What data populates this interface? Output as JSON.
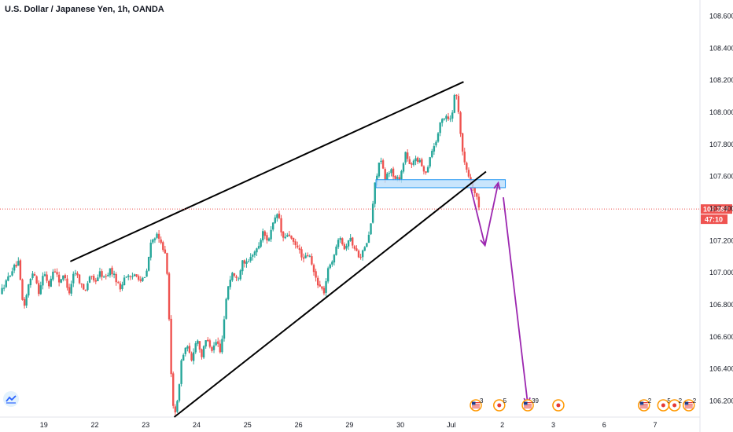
{
  "header": {
    "title": "U.S. Dollar / Japanese Yen, 1h, OANDA"
  },
  "colors": {
    "up": "#26a69a",
    "down": "#ef5350",
    "drawing": "#000000",
    "arrows": "#9c27b0",
    "zone_fill": "#bbdefb",
    "zone_border": "#2196f3",
    "price_line": "#ef5350"
  },
  "chart_data": {
    "type": "candlestick",
    "symbol": "USDJPY",
    "interval": "1h",
    "ylim": [
      106.1,
      108.7
    ],
    "y_ticks": [
      "108.600",
      "108.400",
      "108.200",
      "108.000",
      "107.800",
      "107.600",
      "107.400",
      "107.200",
      "107.000",
      "106.800",
      "106.600",
      "106.400",
      "106.200"
    ],
    "x_ticks": [
      {
        "label": "19",
        "x": 3
      },
      {
        "label": "22",
        "x": 8
      },
      {
        "label": "23",
        "x": 13
      },
      {
        "label": "24",
        "x": 18
      },
      {
        "label": "25",
        "x": 23
      },
      {
        "label": "26",
        "x": 28
      },
      {
        "label": "29",
        "x": 33
      },
      {
        "label": "30",
        "x": 38
      },
      {
        "label": "Jul",
        "x": 43
      },
      {
        "label": "2",
        "x": 48
      },
      {
        "label": "3",
        "x": 53
      },
      {
        "label": "6",
        "x": 58
      },
      {
        "label": "7",
        "x": 63
      }
    ],
    "x_range": [
      -1.3,
      67.4
    ],
    "last_price": {
      "value": 107.397,
      "label": "107.397",
      "countdown": "47:10"
    },
    "trendlines": [
      {
        "name": "upper-wedge-line",
        "points": [
          [
            5.6,
            107.07
          ],
          [
            44.2,
            108.19
          ]
        ]
      },
      {
        "name": "lower-wedge-line",
        "points": [
          [
            15.8,
            106.1
          ],
          [
            46.4,
            107.63
          ]
        ]
      }
    ],
    "zone": {
      "x": [
        35.6,
        48.3
      ],
      "y": [
        107.53,
        107.58
      ]
    },
    "forecast_paths": [
      {
        "points": [
          [
            44.9,
            107.53
          ],
          [
            46.3,
            107.17
          ],
          [
            47.6,
            107.56
          ]
        ]
      },
      {
        "points": [
          [
            48.1,
            107.47
          ],
          [
            50.5,
            106.18
          ]
        ]
      }
    ],
    "price_points": [
      [
        -1.3,
        106.87
      ],
      [
        0,
        107.03
      ],
      [
        0.5,
        107.06
      ],
      [
        1,
        106.77
      ],
      [
        1.5,
        106.92
      ],
      [
        2,
        107.02
      ],
      [
        2.5,
        106.88
      ],
      [
        3,
        107.0
      ],
      [
        3.5,
        106.92
      ],
      [
        4,
        107.03
      ],
      [
        4.5,
        106.95
      ],
      [
        5,
        106.98
      ],
      [
        5.5,
        106.88
      ],
      [
        6,
        107.02
      ],
      [
        6.5,
        106.95
      ],
      [
        7,
        106.88
      ],
      [
        7.5,
        106.98
      ],
      [
        8,
        106.94
      ],
      [
        8.5,
        107.0
      ],
      [
        9,
        106.96
      ],
      [
        9.5,
        107.02
      ],
      [
        10,
        106.97
      ],
      [
        10.5,
        106.9
      ],
      [
        11,
        106.99
      ],
      [
        11.5,
        106.96
      ],
      [
        12,
        107.0
      ],
      [
        12.5,
        106.95
      ],
      [
        13,
        106.97
      ],
      [
        13.5,
        107.18
      ],
      [
        14,
        107.24
      ],
      [
        14.5,
        107.18
      ],
      [
        15,
        107.12
      ],
      [
        15.3,
        106.7
      ],
      [
        15.6,
        106.2
      ],
      [
        16,
        106.12
      ],
      [
        16.5,
        106.45
      ],
      [
        17,
        106.55
      ],
      [
        17.5,
        106.45
      ],
      [
        18,
        106.6
      ],
      [
        18.5,
        106.48
      ],
      [
        19,
        106.6
      ],
      [
        19.5,
        106.52
      ],
      [
        20,
        106.58
      ],
      [
        20.3,
        106.5
      ],
      [
        20.6,
        106.65
      ],
      [
        21,
        106.9
      ],
      [
        21.5,
        107.0
      ],
      [
        22,
        106.95
      ],
      [
        22.5,
        107.08
      ],
      [
        23,
        107.05
      ],
      [
        23.5,
        107.12
      ],
      [
        24,
        107.15
      ],
      [
        24.5,
        107.25
      ],
      [
        25,
        107.2
      ],
      [
        25.5,
        107.3
      ],
      [
        26,
        107.38
      ],
      [
        26.3,
        107.25
      ],
      [
        26.6,
        107.2
      ],
      [
        27,
        107.25
      ],
      [
        27.5,
        107.18
      ],
      [
        28,
        107.15
      ],
      [
        28.5,
        107.08
      ],
      [
        29,
        107.12
      ],
      [
        29.5,
        107.0
      ],
      [
        30,
        106.92
      ],
      [
        30.5,
        106.88
      ],
      [
        31,
        107.05
      ],
      [
        31.5,
        107.1
      ],
      [
        32,
        107.25
      ],
      [
        32.5,
        107.15
      ],
      [
        33,
        107.22
      ],
      [
        33.5,
        107.15
      ],
      [
        34,
        107.1
      ],
      [
        34.5,
        107.15
      ],
      [
        35,
        107.25
      ],
      [
        35.5,
        107.55
      ],
      [
        36,
        107.72
      ],
      [
        36.5,
        107.58
      ],
      [
        37,
        107.65
      ],
      [
        37.5,
        107.58
      ],
      [
        38,
        107.6
      ],
      [
        38.5,
        107.75
      ],
      [
        39,
        107.65
      ],
      [
        39.5,
        107.72
      ],
      [
        40,
        107.68
      ],
      [
        40.5,
        107.62
      ],
      [
        41,
        107.75
      ],
      [
        41.5,
        107.82
      ],
      [
        42,
        107.95
      ],
      [
        42.5,
        107.98
      ],
      [
        43,
        107.95
      ],
      [
        43.3,
        108.12
      ],
      [
        43.6,
        108.08
      ],
      [
        43.9,
        107.88
      ],
      [
        44.2,
        107.7
      ],
      [
        44.6,
        107.62
      ],
      [
        45,
        107.55
      ],
      [
        45.4,
        107.48
      ],
      [
        45.8,
        107.397
      ]
    ],
    "events": [
      {
        "x": 45.4,
        "kind": "us",
        "count": "3"
      },
      {
        "x": 47.7,
        "kind": "dot",
        "count": "5"
      },
      {
        "x": 50.5,
        "kind": "us",
        "count": "39"
      },
      {
        "x": 53.5,
        "kind": "dot",
        "count": ""
      },
      {
        "x": 61.9,
        "kind": "us",
        "count": "2"
      },
      {
        "x": 63.8,
        "kind": "dot",
        "count": "5"
      },
      {
        "x": 64.9,
        "kind": "dot",
        "count": "2"
      },
      {
        "x": 66.3,
        "kind": "us",
        "count": "2"
      }
    ]
  }
}
